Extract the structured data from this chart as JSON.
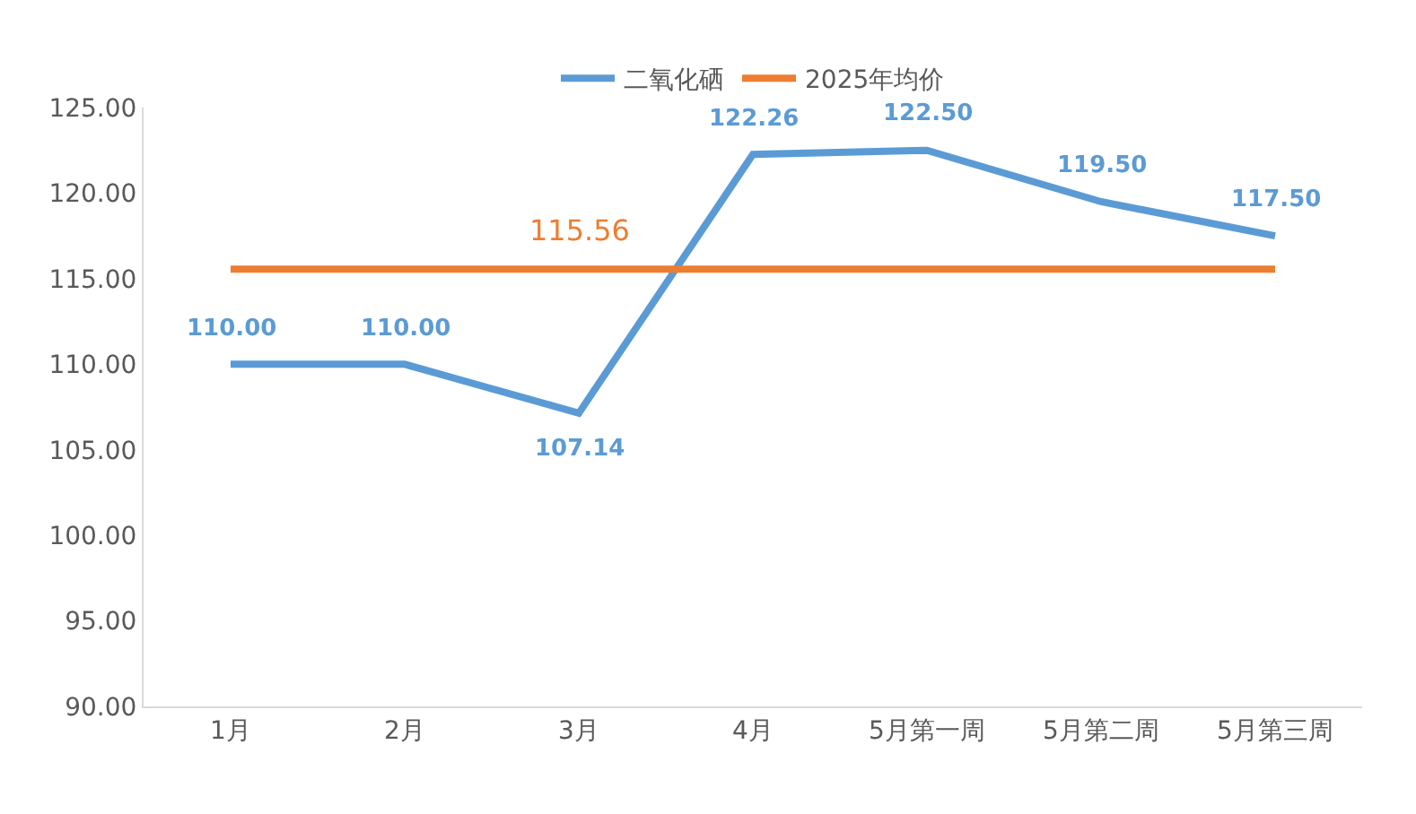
{
  "chart_data": {
    "type": "line",
    "categories": [
      "1月",
      "2月",
      "3月",
      "4月",
      "5月第一周",
      "5月第二周",
      "5月第三周"
    ],
    "series": [
      {
        "name": "二氧化硒",
        "color": "#5b9bd5",
        "values": [
          110.0,
          110.0,
          107.14,
          122.26,
          122.5,
          119.5,
          117.5
        ],
        "value_labels": [
          "110.00",
          "110.00",
          "107.14",
          "122.26",
          "122.50",
          "119.50",
          "117.50"
        ]
      },
      {
        "name": "2025年均价",
        "color": "#ed7d31",
        "values": [
          115.56,
          115.56,
          115.56,
          115.56,
          115.56,
          115.56,
          115.56
        ],
        "value_labels": [
          null,
          null,
          "115.56",
          null,
          null,
          null,
          null
        ]
      }
    ],
    "ylim": [
      90,
      125
    ],
    "yticks": [
      {
        "value": 90,
        "label": "90.00"
      },
      {
        "value": 95,
        "label": "95.00"
      },
      {
        "value": 100,
        "label": "100.00"
      },
      {
        "value": 105,
        "label": "105.00"
      },
      {
        "value": 110,
        "label": "110.00"
      },
      {
        "value": 115,
        "label": "115.00"
      },
      {
        "value": 120,
        "label": "120.00"
      },
      {
        "value": 125,
        "label": "125.00"
      }
    ],
    "legend": "top",
    "marker": "none",
    "line_style": "solid"
  }
}
